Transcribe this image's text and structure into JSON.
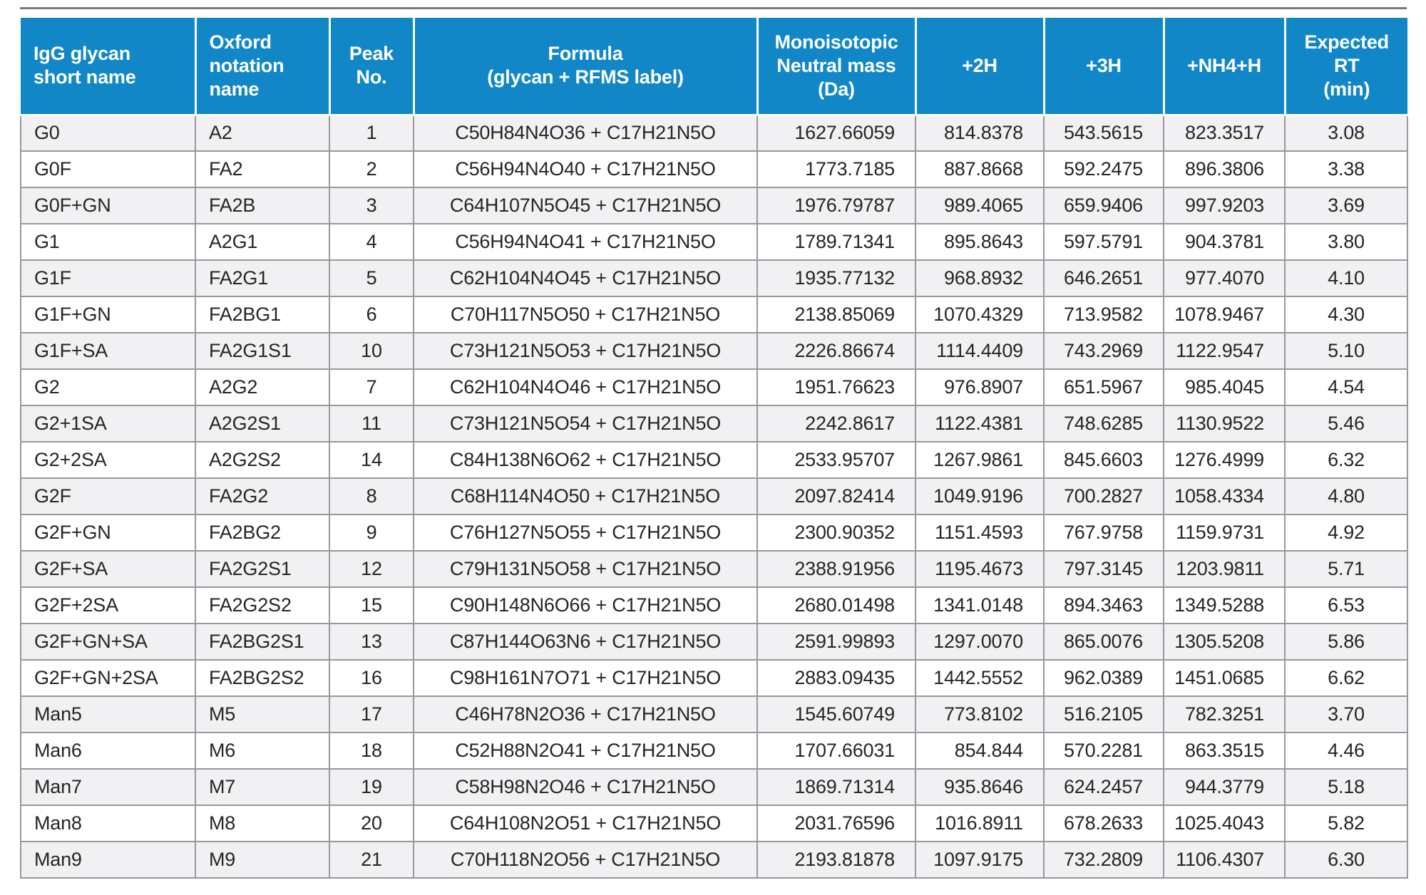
{
  "colors": {
    "header_bg": "#1287c8",
    "header_text": "#ffffff",
    "row_alt_bg": "#f1f1f3",
    "row_bg": "#ffffff",
    "grid_border": "#98989d",
    "text": "#252525",
    "top_rule": "#77787b"
  },
  "table": {
    "columns": [
      {
        "id": "short-name",
        "label": "IgG glycan\nshort name",
        "align": "left"
      },
      {
        "id": "oxford-name",
        "label": "Oxford\nnotation\nname",
        "align": "left"
      },
      {
        "id": "peak-no",
        "label": "Peak\nNo.",
        "align": "center"
      },
      {
        "id": "formula",
        "label": "Formula\n(glycan + RFMS label)",
        "align": "center"
      },
      {
        "id": "monoisotopic-mass",
        "label": "Monoisotopic\nNeutral mass\n(Da)",
        "align": "right"
      },
      {
        "id": "plus-2h",
        "label": "+2H",
        "align": "right"
      },
      {
        "id": "plus-3h",
        "label": "+3H",
        "align": "right"
      },
      {
        "id": "nh4-h",
        "label": "+NH4+H",
        "align": "right"
      },
      {
        "id": "expected-rt",
        "label": "Expected\nRT\n(min)",
        "align": "center"
      }
    ],
    "rows": [
      [
        "G0",
        "A2",
        "1",
        "C50H84N4O36 + C17H21N5O",
        "1627.66059",
        "814.8378",
        "543.5615",
        "823.3517",
        "3.08"
      ],
      [
        "G0F",
        "FA2",
        "2",
        "C56H94N4O40 + C17H21N5O",
        "1773.7185",
        "887.8668",
        "592.2475",
        "896.3806",
        "3.38"
      ],
      [
        "G0F+GN",
        "FA2B",
        "3",
        "C64H107N5O45 + C17H21N5O",
        "1976.79787",
        "989.4065",
        "659.9406",
        "997.9203",
        "3.69"
      ],
      [
        "G1",
        "A2G1",
        "4",
        "C56H94N4O41 + C17H21N5O",
        "1789.71341",
        "895.8643",
        "597.5791",
        "904.3781",
        "3.80"
      ],
      [
        "G1F",
        "FA2G1",
        "5",
        "C62H104N4O45 + C17H21N5O",
        "1935.77132",
        "968.8932",
        "646.2651",
        "977.4070",
        "4.10"
      ],
      [
        "G1F+GN",
        "FA2BG1",
        "6",
        "C70H117N5O50 + C17H21N5O",
        "2138.85069",
        "1070.4329",
        "713.9582",
        "1078.9467",
        "4.30"
      ],
      [
        "G1F+SA",
        "FA2G1S1",
        "10",
        "C73H121N5O53 + C17H21N5O",
        "2226.86674",
        "1114.4409",
        "743.2969",
        "1122.9547",
        "5.10"
      ],
      [
        "G2",
        "A2G2",
        "7",
        "C62H104N4O46 + C17H21N5O",
        "1951.76623",
        "976.8907",
        "651.5967",
        "985.4045",
        "4.54"
      ],
      [
        "G2+1SA",
        "A2G2S1",
        "11",
        "C73H121N5O54 + C17H21N5O",
        "2242.8617",
        "1122.4381",
        "748.6285",
        "1130.9522",
        "5.46"
      ],
      [
        "G2+2SA",
        "A2G2S2",
        "14",
        "C84H138N6O62 + C17H21N5O",
        "2533.95707",
        "1267.9861",
        "845.6603",
        "1276.4999",
        "6.32"
      ],
      [
        "G2F",
        "FA2G2",
        "8",
        "C68H114N4O50 + C17H21N5O",
        "2097.82414",
        "1049.9196",
        "700.2827",
        "1058.4334",
        "4.80"
      ],
      [
        "G2F+GN",
        "FA2BG2",
        "9",
        "C76H127N5O55 + C17H21N5O",
        "2300.90352",
        "1151.4593",
        "767.9758",
        "1159.9731",
        "4.92"
      ],
      [
        "G2F+SA",
        "FA2G2S1",
        "12",
        "C79H131N5O58 + C17H21N5O",
        "2388.91956",
        "1195.4673",
        "797.3145",
        "1203.9811",
        "5.71"
      ],
      [
        "G2F+2SA",
        "FA2G2S2",
        "15",
        "C90H148N6O66 + C17H21N5O",
        "2680.01498",
        "1341.0148",
        "894.3463",
        "1349.5288",
        "6.53"
      ],
      [
        "G2F+GN+SA",
        "FA2BG2S1",
        "13",
        "C87H144O63N6 + C17H21N5O",
        "2591.99893",
        "1297.0070",
        "865.0076",
        "1305.5208",
        "5.86"
      ],
      [
        "G2F+GN+2SA",
        "FA2BG2S2",
        "16",
        "C98H161N7O71 + C17H21N5O",
        "2883.09435",
        "1442.5552",
        "962.0389",
        "1451.0685",
        "6.62"
      ],
      [
        "Man5",
        "M5",
        "17",
        "C46H78N2O36 + C17H21N5O",
        "1545.60749",
        "773.8102",
        "516.2105",
        "782.3251",
        "3.70"
      ],
      [
        "Man6",
        "M6",
        "18",
        "C52H88N2O41 + C17H21N5O",
        "1707.66031",
        "854.844",
        "570.2281",
        "863.3515",
        "4.46"
      ],
      [
        "Man7",
        "M7",
        "19",
        "C58H98N2O46 + C17H21N5O",
        "1869.71314",
        "935.8646",
        "624.2457",
        "944.3779",
        "5.18"
      ],
      [
        "Man8",
        "M8",
        "20",
        "C64H108N2O51 + C17H21N5O",
        "2031.76596",
        "1016.8911",
        "678.2633",
        "1025.4043",
        "5.82"
      ],
      [
        "Man9",
        "M9",
        "21",
        "C70H118N2O56 + C17H21N5O",
        "2193.81878",
        "1097.9175",
        "732.2809",
        "1106.4307",
        "6.30"
      ]
    ]
  }
}
